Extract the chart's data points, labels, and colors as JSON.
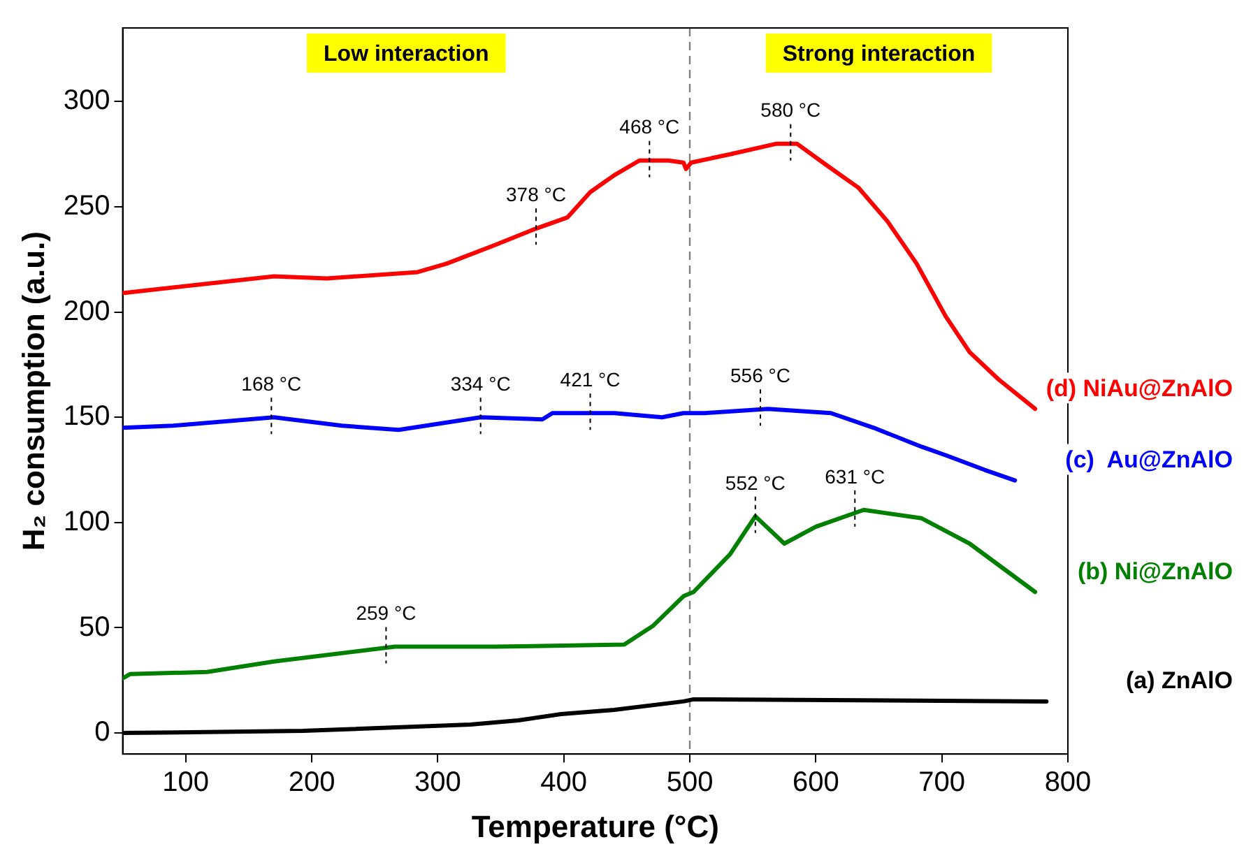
{
  "chart_data": {
    "type": "line",
    "xlabel": "Temperature (°C)",
    "ylabel": "H₂ consumption (a.u.)",
    "xlim": [
      50,
      800
    ],
    "xticks": [
      100,
      200,
      300,
      400,
      500,
      600,
      700,
      800
    ],
    "ylim": [
      -10,
      335
    ],
    "yticks": [
      0,
      50,
      100,
      150,
      200,
      250,
      300
    ],
    "grid": false,
    "legend": false,
    "marker": "none",
    "line_style": "solid",
    "ref_lines": [
      {
        "axis": "x",
        "value": 500,
        "color": "#808080",
        "line_style": "dashed"
      }
    ],
    "annotations": [
      "Low interaction",
      "Strong interaction",
      {
        "text": "378 °C",
        "x": 378,
        "y": 240
      },
      {
        "text": "468 °C",
        "x": 468,
        "y": 272
      },
      {
        "text": "580 °C",
        "x": 580,
        "y": 280
      },
      {
        "text": "168 °C",
        "x": 168,
        "y": 150
      },
      {
        "text": "334 °C",
        "x": 334,
        "y": 150
      },
      {
        "text": "421 °C",
        "x": 421,
        "y": 152
      },
      {
        "text": "556 °C",
        "x": 556,
        "y": 154
      },
      {
        "text": "259 °C",
        "x": 259,
        "y": 41
      },
      {
        "text": "552 °C",
        "x": 552,
        "y": 103
      },
      {
        "text": "631 °C",
        "x": 631,
        "y": 106
      }
    ],
    "series": [
      {
        "name": "(d) NiAu@ZnAlO",
        "color": "#ff0000",
        "x": [
          50,
          170,
          212,
          284,
          307,
          346,
          375,
          403,
          421,
          440,
          460,
          483,
          495,
          497,
          501,
          532,
          569,
          585,
          608,
          634,
          657,
          680,
          703,
          722,
          745,
          774
        ],
        "values": [
          209,
          217,
          216,
          219,
          223,
          232,
          239,
          245,
          257,
          265,
          272,
          272,
          271,
          268,
          271,
          275,
          280,
          280,
          270,
          259,
          243,
          223,
          198,
          181,
          168,
          154
        ]
      },
      {
        "name": "(c)  Au@ZnAlO",
        "color": "#0000ff",
        "x": [
          50,
          90,
          170,
          224,
          269,
          334,
          383,
          391,
          440,
          478,
          495,
          512,
          562,
          612,
          646,
          684,
          703,
          734,
          758
        ],
        "values": [
          145,
          146,
          150,
          146,
          144,
          150,
          149,
          152,
          152,
          150,
          152,
          152,
          154,
          152,
          145,
          136,
          132,
          125,
          120
        ]
      },
      {
        "name": "(b) Ni@ZnAlO",
        "color": "#008000",
        "x": [
          50,
          56,
          117,
          170,
          266,
          346,
          448,
          471,
          495,
          503,
          532,
          552,
          575,
          600,
          638,
          684,
          722,
          774
        ],
        "values": [
          26,
          28,
          29,
          34,
          41,
          41,
          42,
          51,
          65,
          67,
          85,
          103,
          90,
          98,
          106,
          102,
          90,
          67
        ]
      },
      {
        "name": "(a) ZnAlO",
        "color": "#000000",
        "x": [
          50,
          193,
          326,
          364,
          398,
          440,
          495,
          503,
          783
        ],
        "values": [
          0,
          1,
          4,
          6,
          9,
          11,
          15,
          16,
          15
        ]
      }
    ]
  }
}
